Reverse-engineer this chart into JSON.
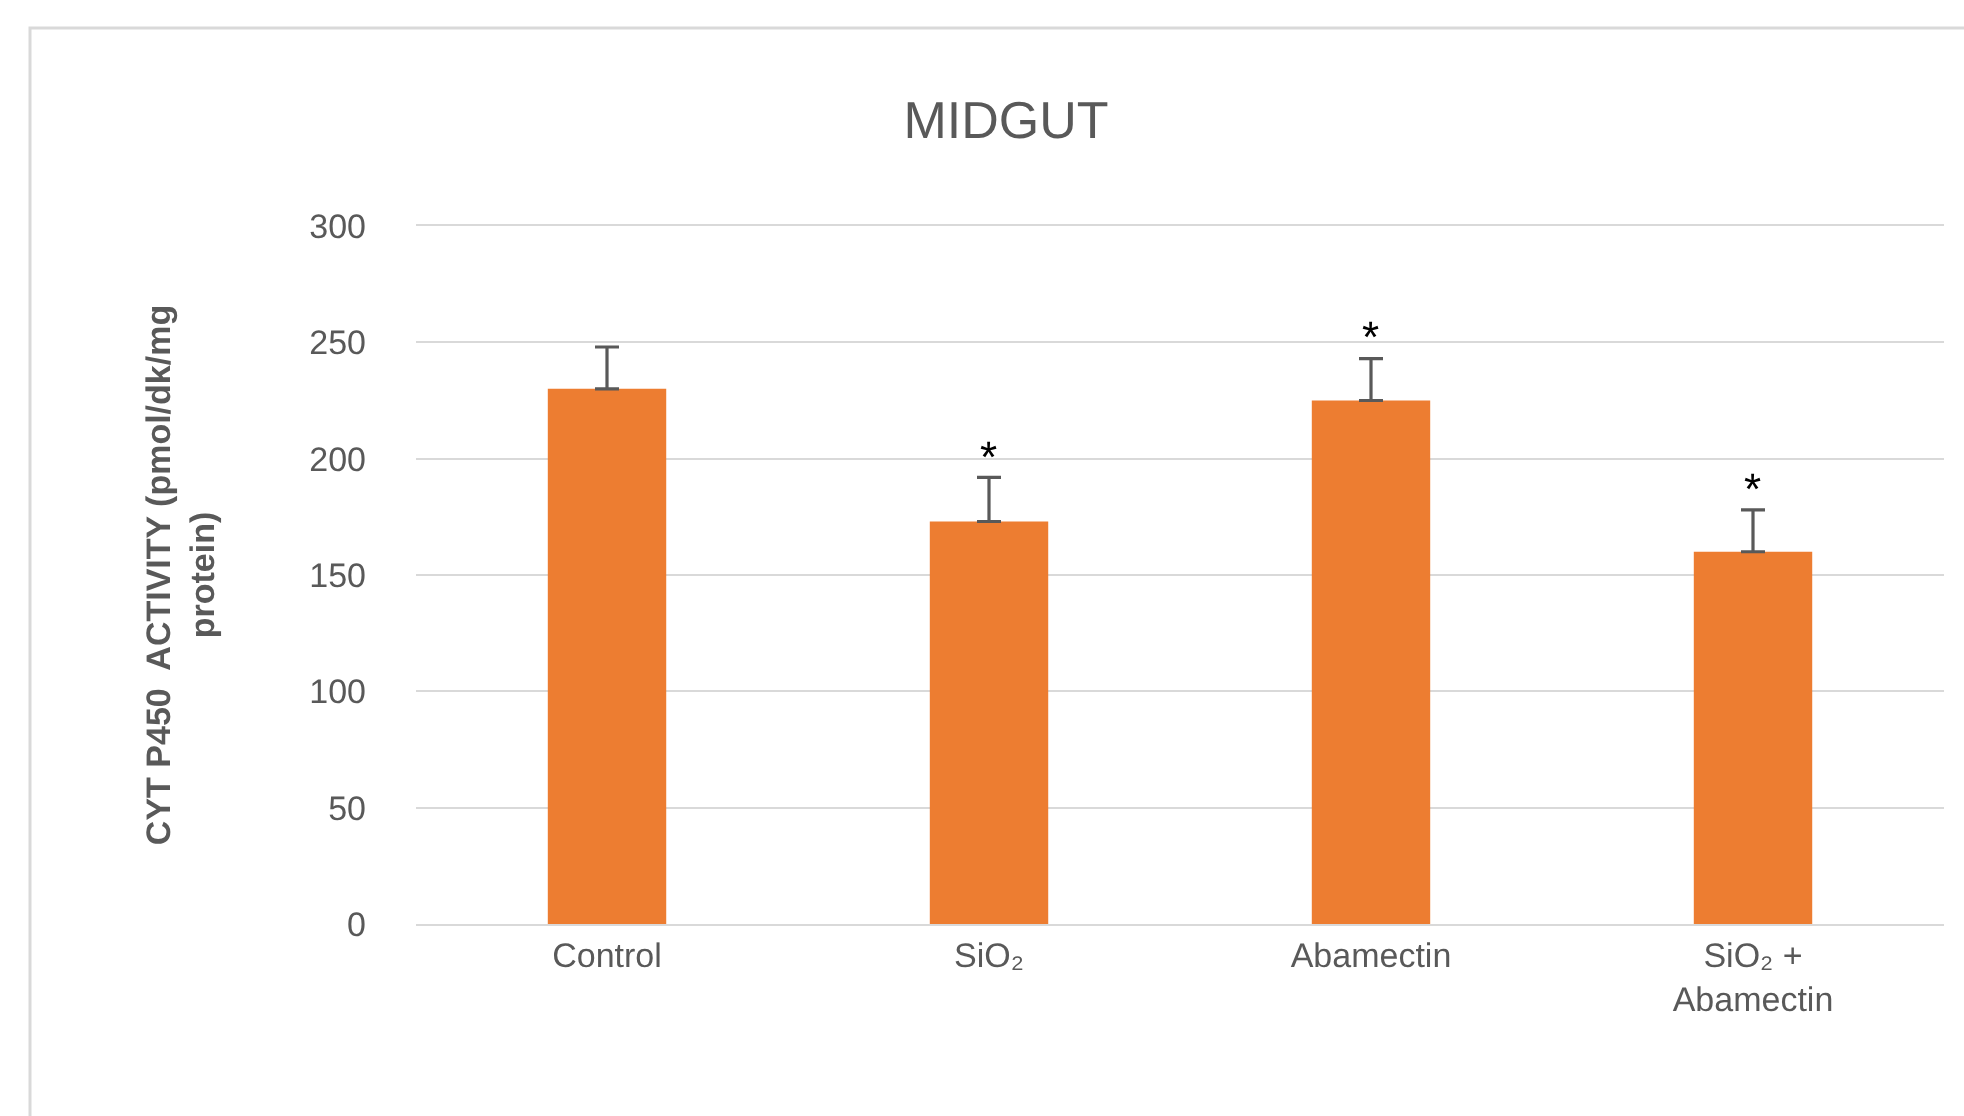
{
  "chart_data": {
    "type": "bar",
    "title": "MIDGUT",
    "ylabel": "CYT P450  ACTIVITY (pmol/dk/mg protein)",
    "categories": [
      "Control",
      "SiO₂",
      "Abamectin",
      "SiO₂ + Abamectin"
    ],
    "values": [
      230,
      173,
      225,
      160
    ],
    "color": "#ed7d31",
    "errors": [
      [
        230,
        248
      ],
      [
        173,
        192
      ],
      [
        225,
        243
      ],
      [
        160,
        178
      ]
    ],
    "ylim": [
      0,
      300
    ],
    "yticks": [
      0,
      50,
      100,
      150,
      200,
      250,
      300
    ],
    "grid": "y",
    "annotations": [
      {
        "text": "*",
        "x": "SiO₂",
        "y": 192
      },
      {
        "text": "*",
        "x": "Abamectin",
        "y": 243
      },
      {
        "text": "*",
        "x": "SiO₂ + Abamectin",
        "y": 178
      }
    ]
  }
}
